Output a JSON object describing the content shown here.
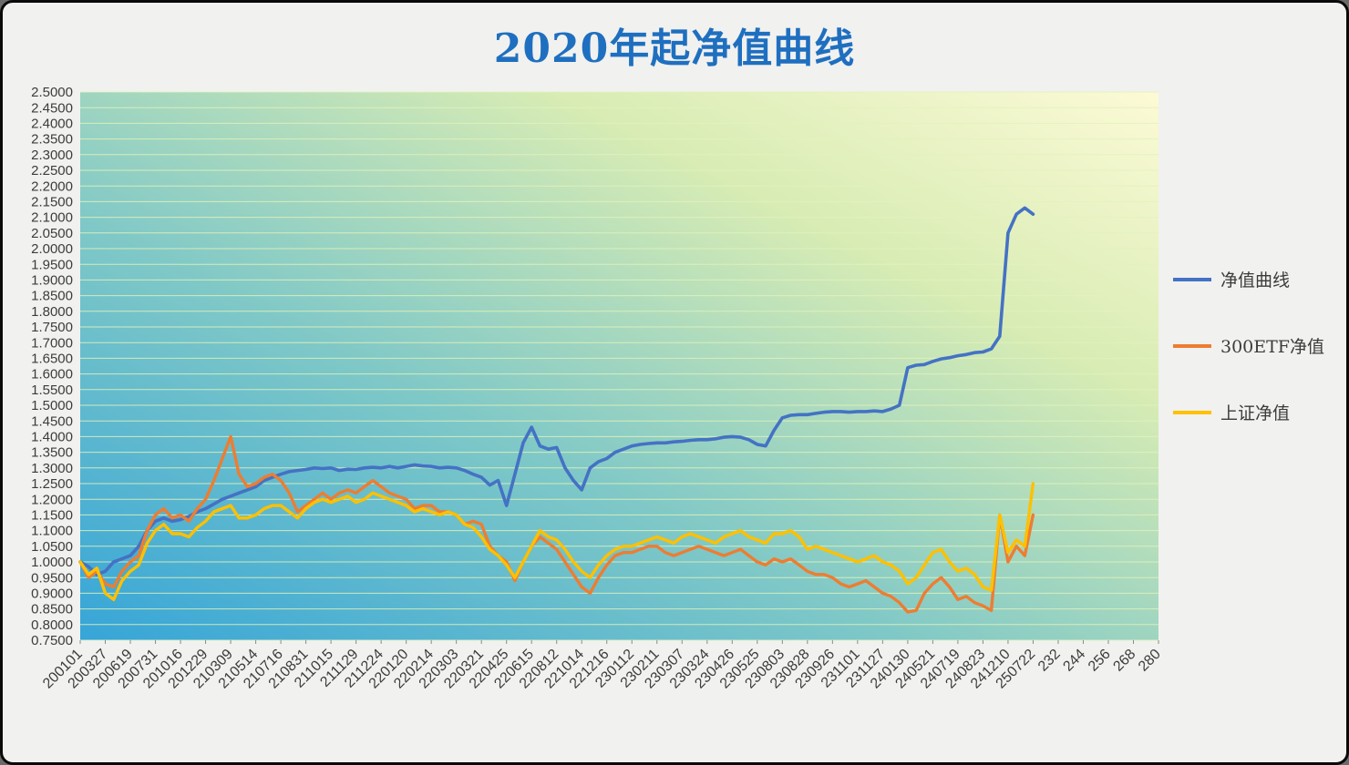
{
  "chart_data": {
    "type": "line",
    "title": "2020年起净值曲线",
    "ylim": [
      0.75,
      2.5
    ],
    "ytick_step": 0.05,
    "ytick_decimals": 4,
    "grid": "horizontal",
    "legend_position": "right",
    "plot_bg_gradient": [
      "#36A5D8",
      "#7FC8C7",
      "#D8ECB4",
      "#FCFAD6"
    ],
    "gridline_color": "#E2F3BC",
    "axis_text_color": "#3c3c3c",
    "title_color": "#1F6FC0",
    "x_tick_labels": [
      "200101",
      "200327",
      "200619",
      "200731",
      "201016",
      "201229",
      "210309",
      "210514",
      "210716",
      "210831",
      "211015",
      "211129",
      "211224",
      "220120",
      "220214",
      "220303",
      "220321",
      "220425",
      "220615",
      "220812",
      "221014",
      "221216",
      "230112",
      "230211",
      "230307",
      "230324",
      "230426",
      "230525",
      "230803",
      "230828",
      "230926",
      "231101",
      "231127",
      "240130",
      "240521",
      "240719",
      "240823",
      "241210",
      "250722",
      "232",
      "244",
      "256",
      "268",
      "280"
    ],
    "data_tick_count": 39,
    "points_per_interval": 3,
    "series": [
      {
        "name": "净值曲线",
        "color": "#4472C4",
        "width": 3.6,
        "values": [
          1.0,
          0.985,
          0.96,
          0.97,
          1.0,
          1.01,
          1.02,
          1.05,
          1.1,
          1.13,
          1.14,
          1.13,
          1.135,
          1.145,
          1.16,
          1.17,
          1.185,
          1.2,
          1.21,
          1.22,
          1.23,
          1.24,
          1.26,
          1.27,
          1.28,
          1.288,
          1.292,
          1.295,
          1.3,
          1.298,
          1.3,
          1.292,
          1.296,
          1.295,
          1.3,
          1.302,
          1.3,
          1.305,
          1.3,
          1.305,
          1.31,
          1.306,
          1.305,
          1.3,
          1.302,
          1.3,
          1.292,
          1.28,
          1.27,
          1.245,
          1.26,
          1.18,
          1.28,
          1.38,
          1.43,
          1.37,
          1.36,
          1.365,
          1.3,
          1.26,
          1.23,
          1.3,
          1.32,
          1.33,
          1.35,
          1.36,
          1.37,
          1.375,
          1.378,
          1.38,
          1.38,
          1.383,
          1.385,
          1.388,
          1.39,
          1.39,
          1.393,
          1.398,
          1.4,
          1.398,
          1.39,
          1.375,
          1.37,
          1.42,
          1.46,
          1.468,
          1.47,
          1.47,
          1.474,
          1.478,
          1.48,
          1.48,
          1.478,
          1.48,
          1.48,
          1.482,
          1.48,
          1.488,
          1.5,
          1.62,
          1.628,
          1.63,
          1.64,
          1.648,
          1.652,
          1.658,
          1.662,
          1.668,
          1.67,
          1.68,
          1.72,
          2.05,
          2.11,
          2.13,
          2.11
        ]
      },
      {
        "name": "300ETF净值",
        "color": "#ED7D31",
        "width": 3.4,
        "values": [
          1.0,
          0.95,
          0.97,
          0.93,
          0.92,
          0.97,
          1.0,
          1.02,
          1.1,
          1.15,
          1.17,
          1.14,
          1.15,
          1.13,
          1.17,
          1.2,
          1.26,
          1.33,
          1.4,
          1.28,
          1.24,
          1.25,
          1.27,
          1.28,
          1.26,
          1.22,
          1.16,
          1.18,
          1.2,
          1.22,
          1.2,
          1.22,
          1.23,
          1.22,
          1.24,
          1.26,
          1.24,
          1.22,
          1.21,
          1.2,
          1.17,
          1.18,
          1.18,
          1.16,
          1.16,
          1.15,
          1.12,
          1.13,
          1.12,
          1.05,
          1.02,
          1.0,
          0.94,
          1.0,
          1.05,
          1.08,
          1.06,
          1.04,
          1.0,
          0.96,
          0.92,
          0.9,
          0.95,
          0.99,
          1.02,
          1.03,
          1.03,
          1.04,
          1.05,
          1.05,
          1.03,
          1.02,
          1.03,
          1.04,
          1.05,
          1.04,
          1.03,
          1.02,
          1.03,
          1.04,
          1.02,
          1.0,
          0.99,
          1.01,
          1.0,
          1.01,
          0.99,
          0.97,
          0.96,
          0.96,
          0.95,
          0.93,
          0.92,
          0.93,
          0.94,
          0.92,
          0.9,
          0.89,
          0.87,
          0.84,
          0.845,
          0.9,
          0.93,
          0.95,
          0.92,
          0.88,
          0.89,
          0.87,
          0.86,
          0.845,
          1.15,
          1.0,
          1.05,
          1.02,
          1.15
        ]
      },
      {
        "name": "上证净值",
        "color": "#FFC000",
        "width": 3.4,
        "values": [
          1.0,
          0.96,
          0.98,
          0.9,
          0.88,
          0.94,
          0.97,
          0.99,
          1.06,
          1.1,
          1.12,
          1.09,
          1.09,
          1.08,
          1.11,
          1.13,
          1.16,
          1.17,
          1.18,
          1.14,
          1.14,
          1.15,
          1.17,
          1.18,
          1.18,
          1.16,
          1.14,
          1.17,
          1.19,
          1.2,
          1.19,
          1.2,
          1.21,
          1.19,
          1.2,
          1.22,
          1.21,
          1.2,
          1.19,
          1.18,
          1.16,
          1.17,
          1.16,
          1.15,
          1.16,
          1.15,
          1.12,
          1.11,
          1.08,
          1.04,
          1.02,
          0.99,
          0.95,
          1.0,
          1.05,
          1.1,
          1.08,
          1.07,
          1.04,
          1.0,
          0.97,
          0.95,
          0.99,
          1.02,
          1.04,
          1.05,
          1.05,
          1.06,
          1.07,
          1.08,
          1.07,
          1.06,
          1.08,
          1.09,
          1.08,
          1.07,
          1.06,
          1.08,
          1.09,
          1.1,
          1.08,
          1.07,
          1.06,
          1.09,
          1.09,
          1.1,
          1.08,
          1.04,
          1.05,
          1.04,
          1.03,
          1.02,
          1.01,
          1.0,
          1.01,
          1.02,
          1.0,
          0.99,
          0.97,
          0.93,
          0.95,
          0.99,
          1.03,
          1.04,
          1.0,
          0.97,
          0.98,
          0.96,
          0.92,
          0.91,
          1.15,
          1.03,
          1.07,
          1.05,
          1.25
        ]
      }
    ]
  }
}
